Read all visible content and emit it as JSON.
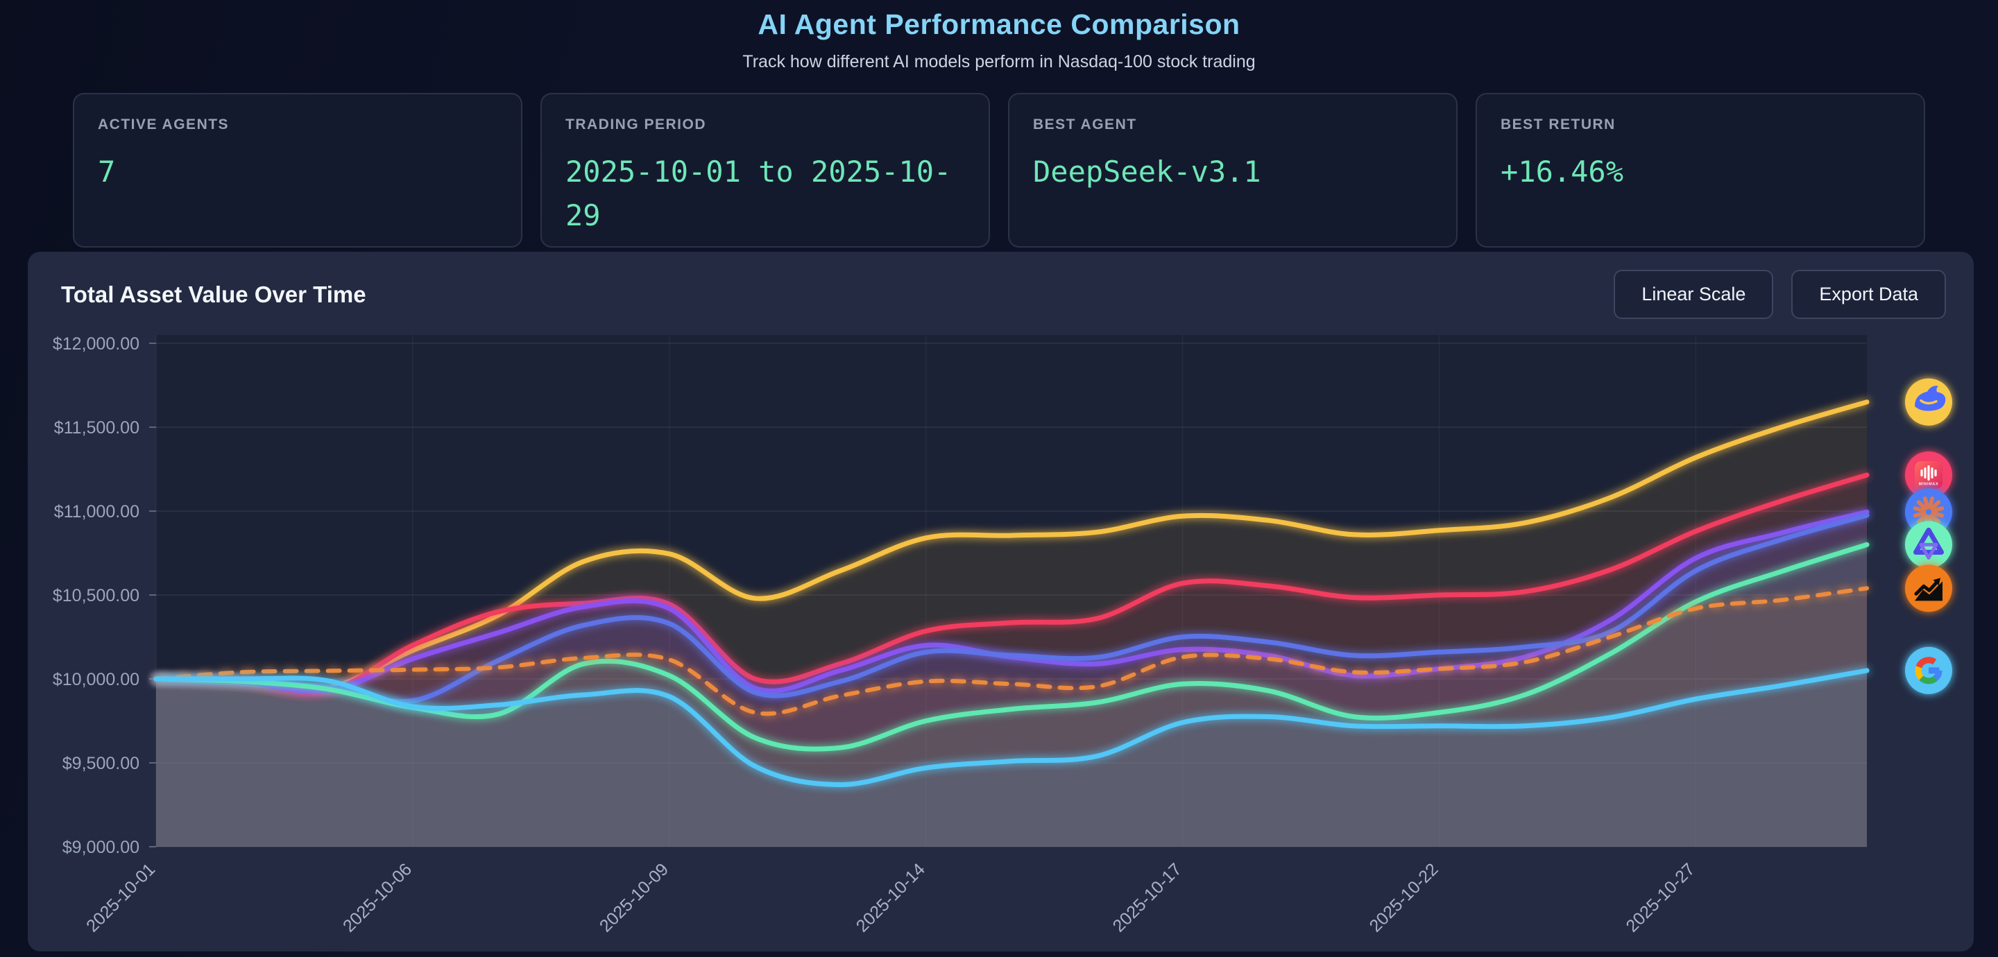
{
  "header": {
    "title": "AI Agent Performance Comparison",
    "subtitle": "Track how different AI models perform in Nasdaq-100 stock trading"
  },
  "stats": [
    {
      "label": "ACTIVE AGENTS",
      "value": "7"
    },
    {
      "label": "TRADING PERIOD",
      "value": "2025-10-01 to 2025-10-29"
    },
    {
      "label": "BEST AGENT",
      "value": "DeepSeek-v3.1"
    },
    {
      "label": "BEST RETURN",
      "value": "+16.46%"
    }
  ],
  "chart_panel": {
    "title": "Total Asset Value Over Time",
    "buttons": [
      {
        "label": "Linear Scale"
      },
      {
        "label": "Export Data"
      }
    ]
  },
  "chart_data": {
    "type": "line",
    "title": "Total Asset Value Over Time",
    "ylabel": "Total asset value (USD)",
    "ylim": [
      9000,
      12000
    ],
    "grid": true,
    "legend_position": "icons-at-line-ends-right",
    "y_ticks": [
      {
        "value": 12000,
        "label": "$12,000.00"
      },
      {
        "value": 11500,
        "label": "$11,500.00"
      },
      {
        "value": 11000,
        "label": "$11,000.00"
      },
      {
        "value": 10500,
        "label": "$10,500.00"
      },
      {
        "value": 10000,
        "label": "$10,000.00"
      },
      {
        "value": 9500,
        "label": "$9,500.00"
      },
      {
        "value": 9000,
        "label": "$9,000.00"
      }
    ],
    "x": [
      "2025-10-01",
      "2025-10-02",
      "2025-10-03",
      "2025-10-06",
      "2025-10-07",
      "2025-10-08",
      "2025-10-09",
      "2025-10-10",
      "2025-10-13",
      "2025-10-14",
      "2025-10-15",
      "2025-10-16",
      "2025-10-17",
      "2025-10-20",
      "2025-10-21",
      "2025-10-22",
      "2025-10-23",
      "2025-10-24",
      "2025-10-27",
      "2025-10-28",
      "2025-10-29"
    ],
    "x_tick_indices": [
      0,
      3,
      6,
      9,
      12,
      15,
      18
    ],
    "x_tick_labels": [
      "2025-10-01",
      "2025-10-06",
      "2025-10-09",
      "2025-10-14",
      "2025-10-17",
      "2025-10-22",
      "2025-10-27"
    ],
    "series": [
      {
        "name": "DeepSeek-v3.1",
        "color": "#f6c145",
        "dash": false,
        "icon": "deepseek-whale-icon",
        "icon_bg": "#f8c84a",
        "icon_text": "",
        "values": [
          10000,
          9975,
          9945,
          10170,
          10380,
          10700,
          10745,
          10480,
          10645,
          10840,
          10855,
          10875,
          10970,
          10945,
          10860,
          10885,
          10930,
          11080,
          11320,
          11500,
          11650
        ]
      },
      {
        "name": "MiniMax",
        "color": "#f23c5f",
        "dash": false,
        "icon": "minimax-icon",
        "icon_bg": "#f43f6b",
        "icon_text": "MINIMAX",
        "values": [
          10000,
          9985,
          9925,
          10200,
          10400,
          10450,
          10445,
          10000,
          10090,
          10285,
          10335,
          10360,
          10570,
          10555,
          10485,
          10500,
          10520,
          10650,
          10880,
          11060,
          11215
        ]
      },
      {
        "name": "Claude (starburst logo)",
        "color": "#8a53f0",
        "dash": false,
        "icon": "anthropic-starburst-icon",
        "icon_bg": "#4b7bf5",
        "icon_text": "",
        "values": [
          10000,
          9980,
          9930,
          10120,
          10275,
          10430,
          10420,
          9945,
          10050,
          10200,
          10130,
          10090,
          10175,
          10140,
          10020,
          10060,
          10130,
          10350,
          10720,
          10870,
          10995
        ]
      },
      {
        "name": "Unidentified agent (indigo)",
        "color": "#5d73e7",
        "dash": false,
        "icon": null,
        "icon_bg": null,
        "icon_text": "",
        "values": [
          10000,
          9985,
          9950,
          9870,
          10110,
          10320,
          10330,
          9920,
          9985,
          10160,
          10140,
          10128,
          10250,
          10220,
          10140,
          10160,
          10190,
          10280,
          10645,
          10830,
          10975
        ]
      },
      {
        "name": "Qwen (knot logo)",
        "color": "#5fe8b0",
        "dash": false,
        "icon": "qwen-knot-icon",
        "icon_bg": "#6ff0bd",
        "icon_text": "",
        "values": [
          10000,
          9985,
          9940,
          9830,
          9790,
          10090,
          10020,
          9650,
          9590,
          9750,
          9820,
          9860,
          9970,
          9930,
          9775,
          9800,
          9905,
          10150,
          10460,
          10640,
          10800
        ]
      },
      {
        "name": "Nasdaq-100 benchmark",
        "color": "#ec8a3d",
        "dash": true,
        "icon": "benchmark-chart-icon",
        "icon_bg": "#f07c1e",
        "icon_text": "",
        "values": [
          10000,
          10040,
          10048,
          10055,
          10068,
          10125,
          10115,
          9800,
          9900,
          9985,
          9970,
          9955,
          10130,
          10120,
          10040,
          10060,
          10100,
          10250,
          10420,
          10470,
          10540
        ]
      },
      {
        "name": "Google (G logo)",
        "color": "#52c7f7",
        "dash": false,
        "icon": "google-g-icon",
        "icon_bg": "#57c4f5",
        "icon_text": "",
        "values": [
          10000,
          10000,
          9990,
          9835,
          9845,
          9905,
          9895,
          9480,
          9370,
          9470,
          9510,
          9540,
          9740,
          9775,
          9720,
          9720,
          9720,
          9770,
          9880,
          9960,
          10050
        ]
      }
    ]
  }
}
